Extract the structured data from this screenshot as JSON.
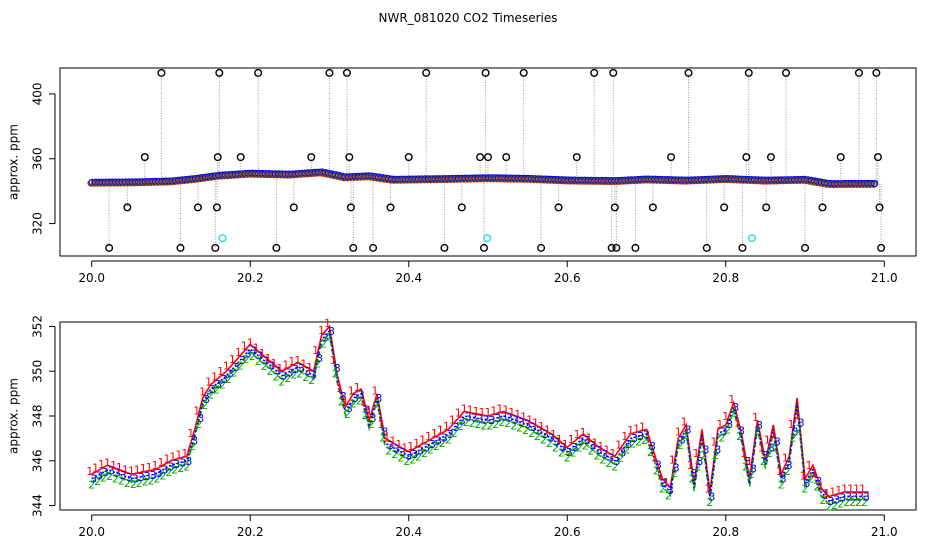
{
  "title": "NWR_081020  CO2 Timeseries",
  "chart_data": [
    {
      "type": "scatter",
      "title": "",
      "xlabel": "",
      "ylabel": "approx. ppm",
      "xlim": [
        19.96,
        21.04
      ],
      "ylim": [
        300,
        416
      ],
      "xticks": [
        20.0,
        20.2,
        20.4,
        20.6,
        20.8,
        21.0
      ],
      "xtick_labels": [
        "20.0",
        "20.2",
        "20.4",
        "20.6",
        "20.8",
        "21.0"
      ],
      "yticks": [
        320,
        360,
        400
      ],
      "ytick_labels": [
        "320",
        "360",
        "400"
      ],
      "grid": false,
      "baseline": [
        [
          20.0,
          345.2
        ],
        [
          20.05,
          345.4
        ],
        [
          20.1,
          346.0
        ],
        [
          20.13,
          347.5
        ],
        [
          20.16,
          349.5
        ],
        [
          20.2,
          350.8
        ],
        [
          20.25,
          350.2
        ],
        [
          20.29,
          351.6
        ],
        [
          20.32,
          348.5
        ],
        [
          20.35,
          349.2
        ],
        [
          20.38,
          347.0
        ],
        [
          20.45,
          347.5
        ],
        [
          20.5,
          348.0
        ],
        [
          20.55,
          347.6
        ],
        [
          20.6,
          346.6
        ],
        [
          20.66,
          346.2
        ],
        [
          20.7,
          347.2
        ],
        [
          20.75,
          346.5
        ],
        [
          20.8,
          347.5
        ],
        [
          20.85,
          346.5
        ],
        [
          20.9,
          347.0
        ],
        [
          20.93,
          344.4
        ],
        [
          20.99,
          344.5
        ]
      ],
      "spike_points": [
        [
          20.022,
          305
        ],
        [
          20.045,
          330
        ],
        [
          20.067,
          361
        ],
        [
          20.088,
          413
        ],
        [
          20.112,
          305
        ],
        [
          20.134,
          330
        ],
        [
          20.156,
          305
        ],
        [
          20.159,
          361
        ],
        [
          20.161,
          413
        ],
        [
          20.158,
          330
        ],
        [
          20.188,
          361
        ],
        [
          20.21,
          413
        ],
        [
          20.233,
          305
        ],
        [
          20.255,
          330
        ],
        [
          20.277,
          361
        ],
        [
          20.3,
          413
        ],
        [
          20.322,
          413
        ],
        [
          20.325,
          361
        ],
        [
          20.327,
          330
        ],
        [
          20.33,
          305
        ],
        [
          20.355,
          305
        ],
        [
          20.377,
          330
        ],
        [
          20.4,
          361
        ],
        [
          20.422,
          413
        ],
        [
          20.445,
          305
        ],
        [
          20.467,
          330
        ],
        [
          20.49,
          361
        ],
        [
          20.495,
          305
        ],
        [
          20.497,
          413
        ],
        [
          20.5,
          361
        ],
        [
          20.523,
          361
        ],
        [
          20.545,
          413
        ],
        [
          20.567,
          305
        ],
        [
          20.589,
          330
        ],
        [
          20.612,
          361
        ],
        [
          20.634,
          413
        ],
        [
          20.656,
          305
        ],
        [
          20.658,
          413
        ],
        [
          20.66,
          330
        ],
        [
          20.662,
          305
        ],
        [
          20.686,
          305
        ],
        [
          20.708,
          330
        ],
        [
          20.731,
          361
        ],
        [
          20.753,
          413
        ],
        [
          20.776,
          305
        ],
        [
          20.798,
          330
        ],
        [
          20.821,
          305
        ],
        [
          20.826,
          361
        ],
        [
          20.829,
          413
        ],
        [
          20.851,
          330
        ],
        [
          20.857,
          361
        ],
        [
          20.876,
          413
        ],
        [
          20.9,
          305
        ],
        [
          20.922,
          330
        ],
        [
          20.945,
          361
        ],
        [
          20.968,
          413
        ],
        [
          20.99,
          413
        ],
        [
          20.992,
          361
        ],
        [
          20.994,
          330
        ],
        [
          20.996,
          305
        ]
      ],
      "highlight_points": [
        [
          20.165,
          311
        ],
        [
          20.499,
          311
        ],
        [
          20.833,
          311
        ]
      ],
      "colors": {
        "series_1": "#ff0000",
        "series_2": "#00aa00",
        "series_3": "#0000ff",
        "spikes": "#000000",
        "highlight": "#44dddd",
        "connector": "#999999"
      }
    },
    {
      "type": "line",
      "title": "",
      "xlabel": "",
      "ylabel": "approx. ppm",
      "xlim": [
        19.96,
        21.04
      ],
      "ylim": [
        343.8,
        352.2
      ],
      "xticks": [
        20.0,
        20.2,
        20.4,
        20.6,
        20.8,
        21.0
      ],
      "xtick_labels": [
        "20.0",
        "20.2",
        "20.4",
        "20.6",
        "20.8",
        "21.0"
      ],
      "yticks": [
        344,
        346,
        348,
        350,
        352
      ],
      "ytick_labels": [
        "344",
        "346",
        "348",
        "350",
        "352"
      ],
      "grid": false,
      "point_markers": [
        "1",
        "2",
        "3"
      ],
      "series_colors": [
        "#ff0000",
        "#00aa00",
        "#0000ff"
      ],
      "x": [
        20.0,
        20.02,
        20.05,
        20.08,
        20.1,
        20.12,
        20.13,
        20.14,
        20.15,
        20.17,
        20.19,
        20.2,
        20.22,
        20.24,
        20.26,
        20.28,
        20.29,
        20.3,
        20.31,
        20.32,
        20.33,
        20.34,
        20.35,
        20.36,
        20.37,
        20.38,
        20.4,
        20.42,
        20.45,
        20.47,
        20.5,
        20.52,
        20.55,
        20.58,
        20.6,
        20.62,
        20.64,
        20.66,
        20.68,
        20.7,
        20.72,
        20.73,
        20.74,
        20.75,
        20.76,
        20.77,
        20.78,
        20.79,
        20.8,
        20.81,
        20.82,
        20.83,
        20.84,
        20.85,
        20.86,
        20.87,
        20.88,
        20.89,
        20.9,
        20.91,
        20.92,
        20.93,
        20.95,
        20.98
      ],
      "values": [
        345.2,
        345.6,
        345.2,
        345.4,
        345.8,
        346.0,
        347.2,
        348.6,
        349.2,
        349.8,
        350.6,
        351.0,
        350.4,
        349.8,
        350.2,
        349.8,
        351.4,
        351.8,
        349.6,
        348.2,
        348.8,
        349.0,
        347.6,
        348.8,
        346.8,
        346.6,
        346.2,
        346.6,
        347.2,
        348.0,
        347.8,
        348.0,
        347.6,
        347.0,
        346.4,
        347.0,
        346.4,
        346.0,
        347.0,
        347.2,
        345.0,
        344.6,
        346.8,
        347.4,
        344.8,
        347.2,
        344.4,
        347.2,
        347.4,
        348.4,
        347.0,
        345.0,
        347.6,
        345.8,
        347.4,
        345.2,
        346.0,
        348.6,
        345.0,
        345.6,
        344.6,
        344.2,
        344.4,
        344.4
      ]
    }
  ]
}
